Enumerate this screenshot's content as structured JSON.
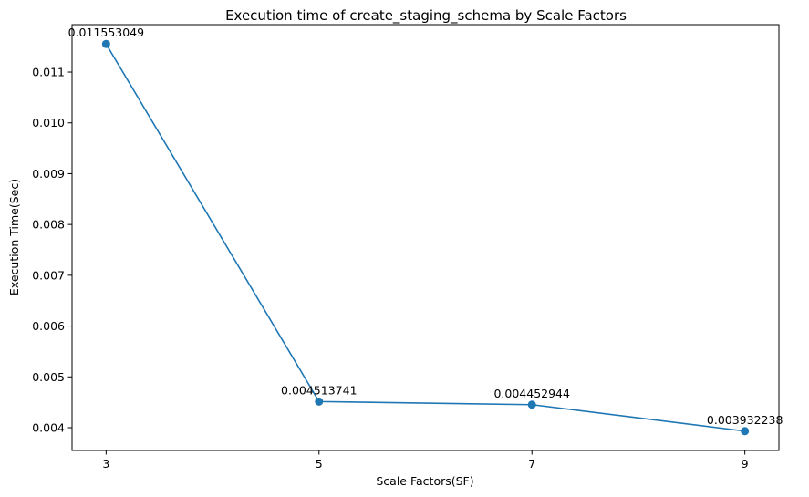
{
  "chart_data": {
    "type": "line",
    "title": "Execution time of create_staging_schema by Scale Factors",
    "xlabel": "Scale Factors(SF)",
    "ylabel": "Execution Time(Sec)",
    "x": [
      3,
      5,
      7,
      9
    ],
    "x_tick_labels": [
      "3",
      "5",
      "7",
      "9"
    ],
    "y_ticks": [
      0.004,
      0.005,
      0.006,
      0.007,
      0.008,
      0.009,
      0.01,
      0.011
    ],
    "y_tick_labels": [
      "0.004",
      "0.005",
      "0.006",
      "0.007",
      "0.008",
      "0.009",
      "0.010",
      "0.011"
    ],
    "xlim": [
      2.68,
      9.32
    ],
    "ylim": [
      0.003551,
      0.011934
    ],
    "series": [
      {
        "values": [
          0.011553049,
          0.004513741,
          0.004452944,
          0.003932238
        ],
        "data_labels": [
          "0.011553049",
          "0.004513741",
          "0.004452944",
          "0.003932238"
        ],
        "color": "#1f77b4",
        "marker": "circle"
      }
    ],
    "grid": false,
    "legend": "none"
  }
}
